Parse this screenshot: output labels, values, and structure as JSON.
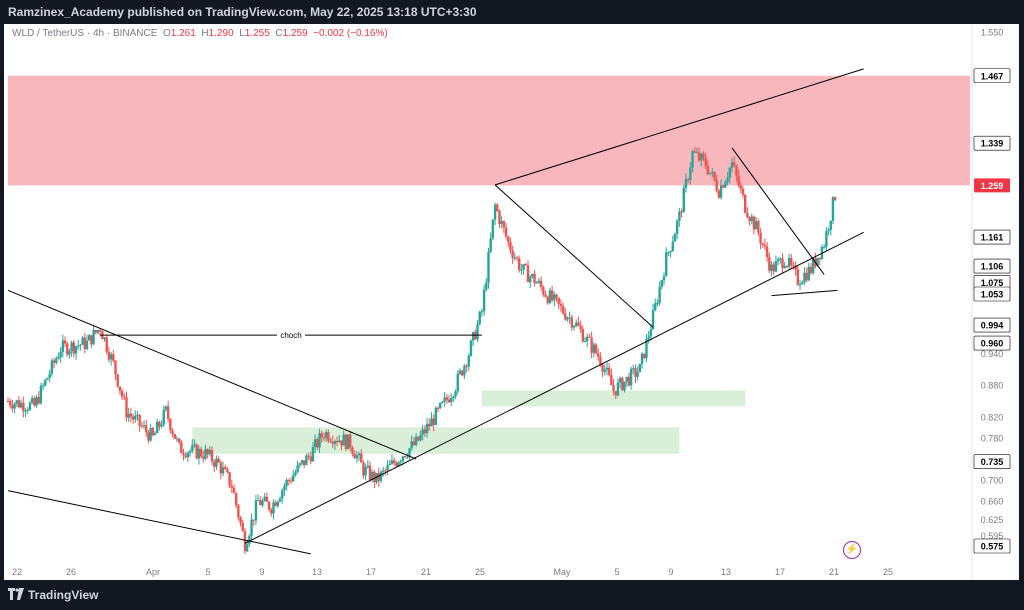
{
  "header": {
    "published_text": "Ramzinex_Academy published on TradingView.com, May 22, 2025 13:18 UTC+3:30"
  },
  "symbol_bar": {
    "symbol": "WLD / TetherUS · 4h · BINANCE",
    "o_label": "O",
    "o_value": "1.261",
    "h_label": "H",
    "h_value": "1.290",
    "l_label": "L",
    "l_value": "1.255",
    "c_label": "C",
    "c_value": "1.259",
    "change": "−0.002 (−0.16%)"
  },
  "footer": {
    "brand": "TradingView"
  },
  "icons": {
    "logo": "tradingview-logo-icon",
    "alert": "lightning-bolt-icon"
  },
  "colors": {
    "up": "#26a69a",
    "down": "#ef5350",
    "supply_zone": "#f8b6bd",
    "demand_zone": "#d9efda",
    "trendline": "#000000",
    "last_price": "#f23645"
  },
  "chart_data": {
    "type": "candlestick",
    "symbol": "WLD/USDT",
    "interval": "4h",
    "ylim": [
      0.575,
      1.55
    ],
    "y_ticks": [
      "1.550",
      "1.467",
      "1.339",
      "1.259",
      "1.161",
      "1.106",
      "1.075",
      "1.053",
      "0.994",
      "0.960",
      "0.940",
      "0.880",
      "0.820",
      "0.780",
      "0.735",
      "0.700",
      "0.660",
      "0.625",
      "0.595",
      "0.575"
    ],
    "x_ticks": [
      "22",
      "26",
      "Apr",
      "5",
      "9",
      "13",
      "17",
      "21",
      "25",
      "May",
      "5",
      "9",
      "13",
      "17",
      "21",
      "25"
    ],
    "highlighted_price_labels": [
      {
        "value": 1.467,
        "style": "box"
      },
      {
        "value": 1.339,
        "style": "box"
      },
      {
        "value": 1.259,
        "style": "last"
      },
      {
        "value": 1.161,
        "style": "box"
      },
      {
        "value": 1.106,
        "style": "box"
      },
      {
        "value": 1.075,
        "style": "box"
      },
      {
        "value": 1.053,
        "style": "box"
      },
      {
        "value": 0.994,
        "style": "box"
      },
      {
        "value": 0.96,
        "style": "box"
      },
      {
        "value": 0.735,
        "style": "box"
      },
      {
        "value": 0.575,
        "style": "box"
      }
    ],
    "price_path": [
      {
        "date": "Mar 20",
        "close": 0.85
      },
      {
        "date": "Mar 22",
        "close": 0.84
      },
      {
        "date": "Mar 24",
        "close": 0.95
      },
      {
        "date": "Mar 26",
        "close": 0.96
      },
      {
        "date": "Mar 27",
        "close": 0.99
      },
      {
        "date": "Mar 28",
        "close": 0.92
      },
      {
        "date": "Mar 29",
        "close": 0.83
      },
      {
        "date": "Mar 31",
        "close": 0.78
      },
      {
        "date": "Apr 1",
        "close": 0.83
      },
      {
        "date": "Apr 2",
        "close": 0.76
      },
      {
        "date": "Apr 4",
        "close": 0.75
      },
      {
        "date": "Apr 5",
        "close": 0.73
      },
      {
        "date": "Apr 6",
        "close": 0.69
      },
      {
        "date": "Apr 7",
        "close": 0.58
      },
      {
        "date": "Apr 8",
        "close": 0.66
      },
      {
        "date": "Apr 9",
        "close": 0.65
      },
      {
        "date": "Apr 10",
        "close": 0.69
      },
      {
        "date": "Apr 12",
        "close": 0.75
      },
      {
        "date": "Apr 13",
        "close": 0.79
      },
      {
        "date": "Apr 15",
        "close": 0.77
      },
      {
        "date": "Apr 16",
        "close": 0.72
      },
      {
        "date": "Apr 17",
        "close": 0.7
      },
      {
        "date": "Apr 19",
        "close": 0.75
      },
      {
        "date": "Apr 20",
        "close": 0.77
      },
      {
        "date": "Apr 22",
        "close": 0.84
      },
      {
        "date": "Apr 23",
        "close": 0.88
      },
      {
        "date": "Apr 24",
        "close": 0.94
      },
      {
        "date": "Apr 25",
        "close": 1.02
      },
      {
        "date": "Apr 26",
        "close": 1.22
      },
      {
        "date": "Apr 27",
        "close": 1.15
      },
      {
        "date": "Apr 28",
        "close": 1.1
      },
      {
        "date": "Apr 29",
        "close": 1.08
      },
      {
        "date": "Apr 30",
        "close": 1.05
      },
      {
        "date": "May 2",
        "close": 1.0
      },
      {
        "date": "May 4",
        "close": 0.93
      },
      {
        "date": "May 5",
        "close": 0.87
      },
      {
        "date": "May 6",
        "close": 0.89
      },
      {
        "date": "May 7",
        "close": 0.91
      },
      {
        "date": "May 8",
        "close": 1.01
      },
      {
        "date": "May 9",
        "close": 1.12
      },
      {
        "date": "May 10",
        "close": 1.2
      },
      {
        "date": "May 11",
        "close": 1.32
      },
      {
        "date": "May 12",
        "close": 1.3
      },
      {
        "date": "May 13",
        "close": 1.25
      },
      {
        "date": "May 14",
        "close": 1.3
      },
      {
        "date": "May 15",
        "close": 1.22
      },
      {
        "date": "May 16",
        "close": 1.17
      },
      {
        "date": "May 17",
        "close": 1.1
      },
      {
        "date": "May 18",
        "close": 1.12
      },
      {
        "date": "May 19",
        "close": 1.08
      },
      {
        "date": "May 20",
        "close": 1.1
      },
      {
        "date": "May 21",
        "close": 1.15
      },
      {
        "date": "May 22",
        "close": 1.259
      }
    ],
    "zones": [
      {
        "kind": "supply",
        "y_top": 1.467,
        "y_bottom": 1.259,
        "x_start": "Mar 20",
        "x_end": "right-edge"
      },
      {
        "kind": "demand",
        "y_top": 0.8,
        "y_bottom": 0.75,
        "x_start": "Apr 3",
        "x_end": "May 10"
      },
      {
        "kind": "demand",
        "y_top": 0.87,
        "y_bottom": 0.84,
        "x_start": "Apr 25",
        "x_end": "May 15"
      }
    ],
    "annotations": [
      {
        "text": "choch",
        "y": 0.975,
        "x_start": "Mar 27",
        "x_end": "Apr 25"
      }
    ],
    "trendlines": [
      {
        "name": "descending-channel-top",
        "from": {
          "date": "Mar 20",
          "price": 1.06
        },
        "to": {
          "date": "Apr 20",
          "price": 0.74
        }
      },
      {
        "name": "descending-channel-bottom",
        "from": {
          "date": "Mar 20",
          "price": 0.68
        },
        "to": {
          "date": "Apr 12",
          "price": 0.56
        }
      },
      {
        "name": "rising-support",
        "from": {
          "date": "Apr 7",
          "price": 0.58
        },
        "to": {
          "date": "May 24",
          "price": 1.17
        }
      },
      {
        "name": "rising-resistance",
        "from": {
          "date": "Apr 26",
          "price": 1.26
        },
        "to": {
          "date": "May 24",
          "price": 1.48
        }
      },
      {
        "name": "descending-trendline-1",
        "from": {
          "date": "Apr 26",
          "price": 1.26
        },
        "to": {
          "date": "May 8",
          "price": 0.99
        }
      },
      {
        "name": "descending-trendline-2",
        "from": {
          "date": "May 14",
          "price": 1.33
        },
        "to": {
          "date": "May 21",
          "price": 1.09
        }
      },
      {
        "name": "triangle-base",
        "from": {
          "date": "May 17",
          "price": 1.05
        },
        "to": {
          "date": "May 22",
          "price": 1.06
        }
      }
    ]
  }
}
